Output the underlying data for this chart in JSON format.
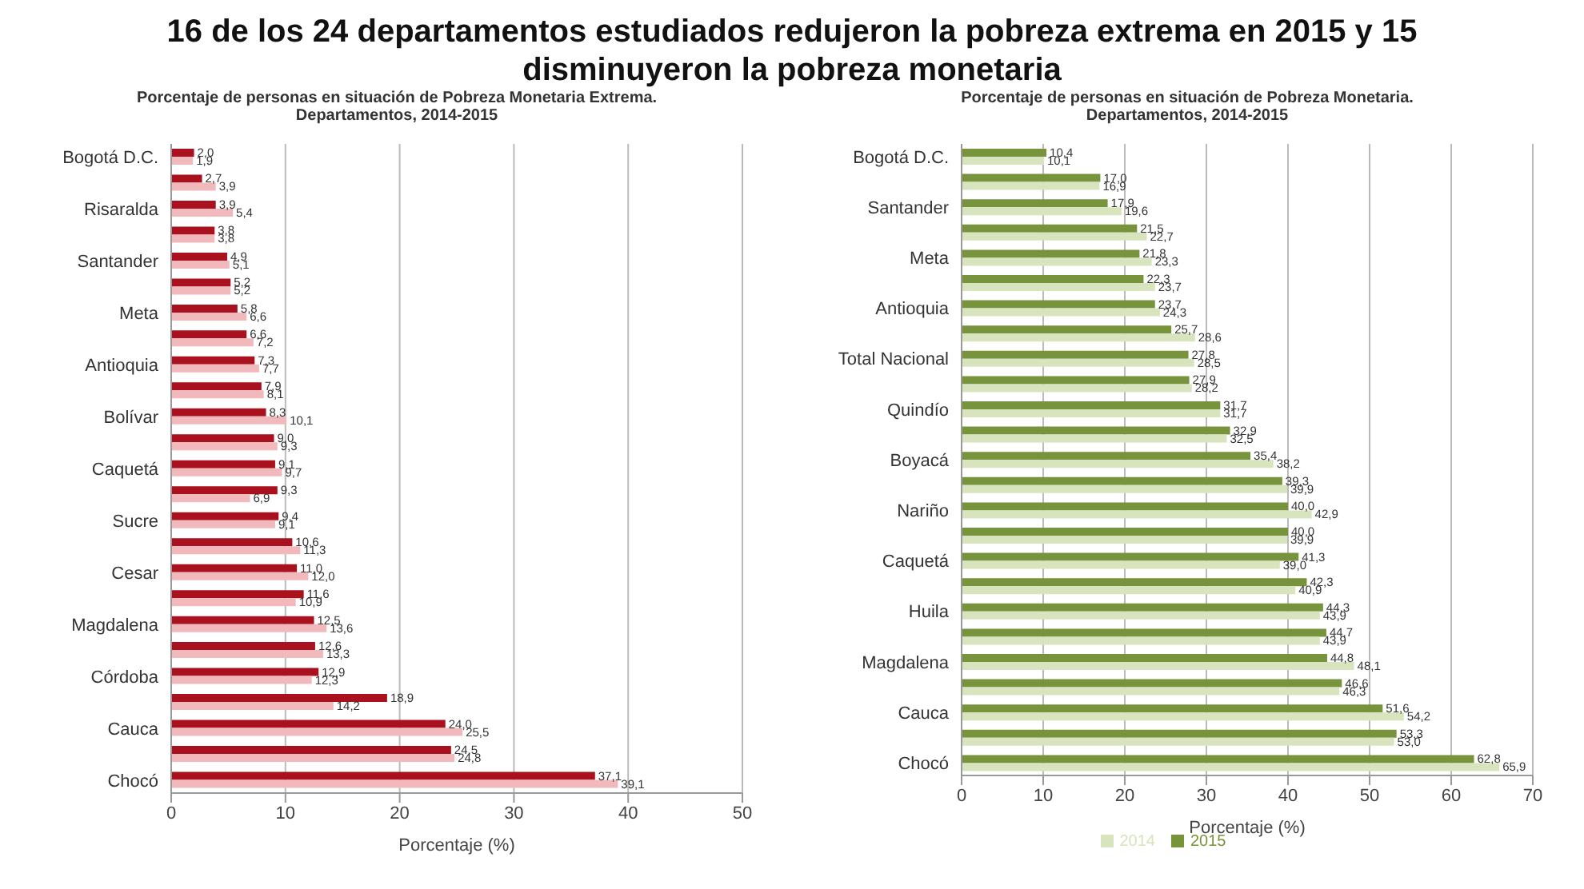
{
  "chart_data": [
    {
      "type": "bar",
      "orientation": "horizontal",
      "title": "Porcentaje de personas en situación de Pobreza Monetaria Extrema. Departamentos, 2014-2015",
      "xlabel": "Porcentaje (%)",
      "annotations": [
        "16 de los 24 departamentos estudiados redujeron la pobreza extrema en 2015 y 15 disminuyeron la pobreza monetaria"
      ],
      "categories": [
        "Bogotá D.C.",
        null,
        "Risaralda",
        null,
        "Santander",
        null,
        "Meta",
        null,
        "Antioquia",
        null,
        "Bolívar",
        null,
        "Caquetá",
        null,
        "Sucre",
        null,
        "Cesar",
        null,
        "Magdalena",
        null,
        "Córdoba",
        null,
        "Cauca",
        null,
        "Chocó"
      ],
      "series": [
        {
          "color": "#a8111d",
          "values": [
            2.0,
            2.7,
            3.9,
            3.8,
            4.9,
            5.2,
            5.8,
            6.6,
            7.3,
            7.9,
            8.3,
            9.0,
            9.1,
            9.3,
            9.4,
            10.6,
            11.0,
            11.6,
            12.5,
            12.6,
            12.9,
            18.9,
            24.0,
            24.5,
            37.1
          ],
          "value_labels": [
            "2,0",
            "2,7",
            "3,9",
            "3,8",
            "4,9",
            "5,2",
            "5,8",
            "6,6",
            "7,3",
            "7,9",
            "8,3",
            "9,0",
            "9,1",
            "9,3",
            "9,4",
            "10,6",
            "11,0",
            "11,6",
            "12,5",
            "12,6",
            "12,9",
            "18,9",
            "24,0",
            "24,5",
            "37,1"
          ]
        },
        {
          "color": "#f2b9bd",
          "values": [
            1.9,
            3.9,
            5.4,
            3.8,
            5.1,
            5.2,
            6.6,
            7.2,
            7.7,
            8.1,
            10.1,
            9.3,
            9.7,
            6.9,
            9.1,
            11.3,
            12.0,
            10.9,
            13.6,
            13.3,
            12.3,
            14.2,
            25.5,
            24.8,
            39.1
          ],
          "value_labels": [
            "1,9",
            "3,9",
            "5,4",
            "3,8",
            "5,1",
            "5,2",
            "6,6",
            "7,2",
            "7,7",
            "8,1",
            "10,1",
            "9,3",
            "9,7",
            "6,9",
            "9,1",
            "11,3",
            "12,0",
            "10,9",
            "13,6",
            "13,3",
            "12,3",
            "14,2",
            "25,5",
            "24,8",
            "39,1"
          ]
        }
      ],
      "xlim": [
        0,
        50
      ],
      "xticks": [
        0,
        10,
        20,
        30,
        40,
        50
      ],
      "grid": "x",
      "legend": false
    },
    {
      "type": "bar",
      "orientation": "horizontal",
      "title": "Porcentaje de personas en situación de Pobreza Monetaria. Departamentos, 2014-2015",
      "xlabel": "Porcentaje (%)",
      "categories": [
        "Bogotá D.C.",
        null,
        "Santander",
        null,
        "Meta",
        null,
        "Antioquia",
        null,
        "Total Nacional",
        null,
        "Quindío",
        null,
        "Boyacá",
        null,
        "Nariño",
        null,
        "Caquetá",
        null,
        "Huila",
        null,
        "Magdalena",
        null,
        "Cauca",
        null,
        "Chocó"
      ],
      "series": [
        {
          "name": "2015",
          "color": "#77933c",
          "values": [
            10.4,
            17.0,
            17.9,
            21.5,
            21.8,
            22.3,
            23.7,
            25.7,
            27.8,
            27.9,
            31.7,
            32.9,
            35.4,
            39.3,
            40.0,
            40.0,
            41.3,
            42.3,
            44.3,
            44.7,
            44.8,
            46.6,
            51.6,
            53.3,
            62.8
          ],
          "value_labels": [
            "10,4",
            "17,0",
            "17,9",
            "21,5",
            "21,8",
            "22,3",
            "23,7",
            "25,7",
            "27,8",
            "27,9",
            "31,7",
            "32,9",
            "35,4",
            "39,3",
            "40,0",
            "40,0",
            "41,3",
            "42,3",
            "44,3",
            "44,7",
            "44,8",
            "46,6",
            "51,6",
            "53,3",
            "62,8"
          ]
        },
        {
          "name": "2014",
          "color": "#d7e4bd",
          "values": [
            10.1,
            16.9,
            19.6,
            22.7,
            23.3,
            23.7,
            24.3,
            28.6,
            28.5,
            28.2,
            31.7,
            32.5,
            38.2,
            39.9,
            42.9,
            39.9,
            39.0,
            40.9,
            43.9,
            43.9,
            48.1,
            46.3,
            54.2,
            53.0,
            65.9
          ],
          "value_labels": [
            "10,1",
            "16,9",
            "19,6",
            "22,7",
            "23,3",
            "23,7",
            "24,3",
            "28,6",
            "28,5",
            "28,2",
            "31,7",
            "32,5",
            "38,2",
            "39,9",
            "42,9",
            "39,9",
            "39,0",
            "40,9",
            "43,9",
            "43,9",
            "48,1",
            "46,3",
            "54,2",
            "53,0",
            "65,9"
          ]
        }
      ],
      "xlim": [
        0,
        70
      ],
      "xticks": [
        0,
        10,
        20,
        30,
        40,
        50,
        60,
        70
      ],
      "grid": "x",
      "legend": "bottom"
    }
  ]
}
